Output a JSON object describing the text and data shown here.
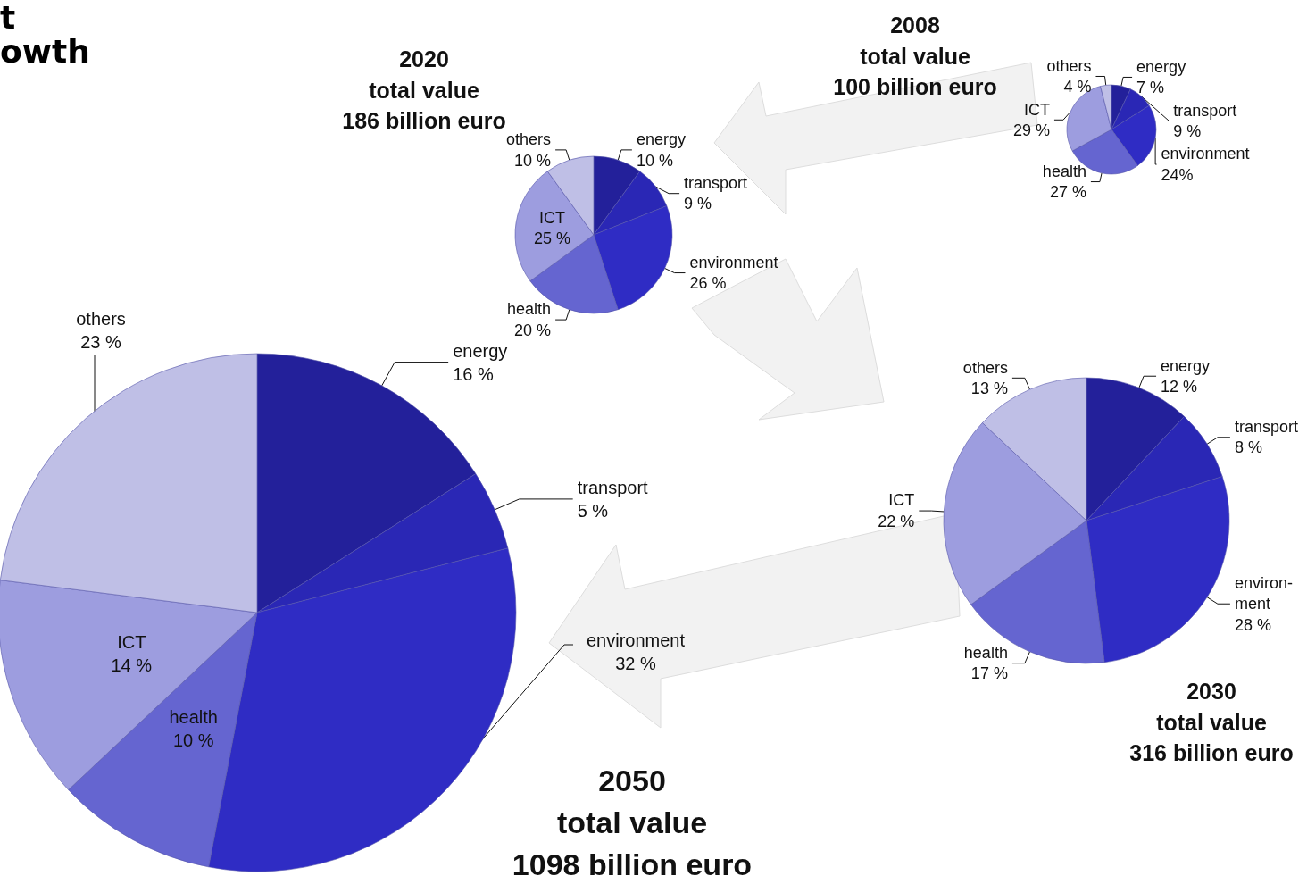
{
  "chart_data": [
    {
      "type": "pie",
      "title": "2008\ntotal value\n100 billion euro",
      "annotations": [
        "t",
        "owth"
      ],
      "categories": [
        "energy",
        "transport",
        "environment",
        "health",
        "ICT",
        "others"
      ],
      "values": [
        7,
        9,
        24,
        27,
        29,
        4
      ],
      "value_labels": [
        "7 %",
        "9 %",
        "24%",
        "27 %",
        "29 %",
        "4 %"
      ],
      "colors": [
        "#23209a",
        "#2a27b5",
        "#2f2cc4",
        "#6565d0",
        "#9d9ddf",
        "#bfbfe6"
      ],
      "legend": false
    },
    {
      "type": "pie",
      "title": "2020\ntotal value\n186 billion euro",
      "categories": [
        "energy",
        "transport",
        "environment",
        "health",
        "ICT",
        "others"
      ],
      "values": [
        10,
        9,
        26,
        20,
        25,
        10
      ],
      "value_labels": [
        "10 %",
        "9 %",
        "26 %",
        "20 %",
        "25 %",
        "10 %"
      ],
      "colors": [
        "#23209a",
        "#2a27b5",
        "#2f2cc4",
        "#6565d0",
        "#9d9ddf",
        "#bfbfe6"
      ],
      "legend": false
    },
    {
      "type": "pie",
      "title": "2030\ntotal value\n316 billion euro",
      "categories": [
        "energy",
        "transport",
        "environ-\nment",
        "health",
        "ICT",
        "others"
      ],
      "values": [
        12,
        8,
        28,
        17,
        22,
        13
      ],
      "value_labels": [
        "12 %",
        "8 %",
        "28 %",
        "17 %",
        "22 %",
        "13 %"
      ],
      "colors": [
        "#23209a",
        "#2a27b5",
        "#2f2cc4",
        "#6565d0",
        "#9d9ddf",
        "#bfbfe6"
      ],
      "legend": false
    },
    {
      "type": "pie",
      "title": "2050\ntotal value\n1098 billion euro",
      "categories": [
        "energy",
        "transport",
        "environment",
        "health",
        "ICT",
        "others"
      ],
      "values": [
        16,
        5,
        32,
        10,
        14,
        23
      ],
      "value_labels": [
        "16 %",
        "5 %",
        "32 %",
        "10 %",
        "14 %",
        "23 %"
      ],
      "colors": [
        "#23209a",
        "#2a27b5",
        "#2f2cc4",
        "#6565d0",
        "#9d9ddf",
        "#bfbfe6"
      ],
      "legend": false
    }
  ]
}
